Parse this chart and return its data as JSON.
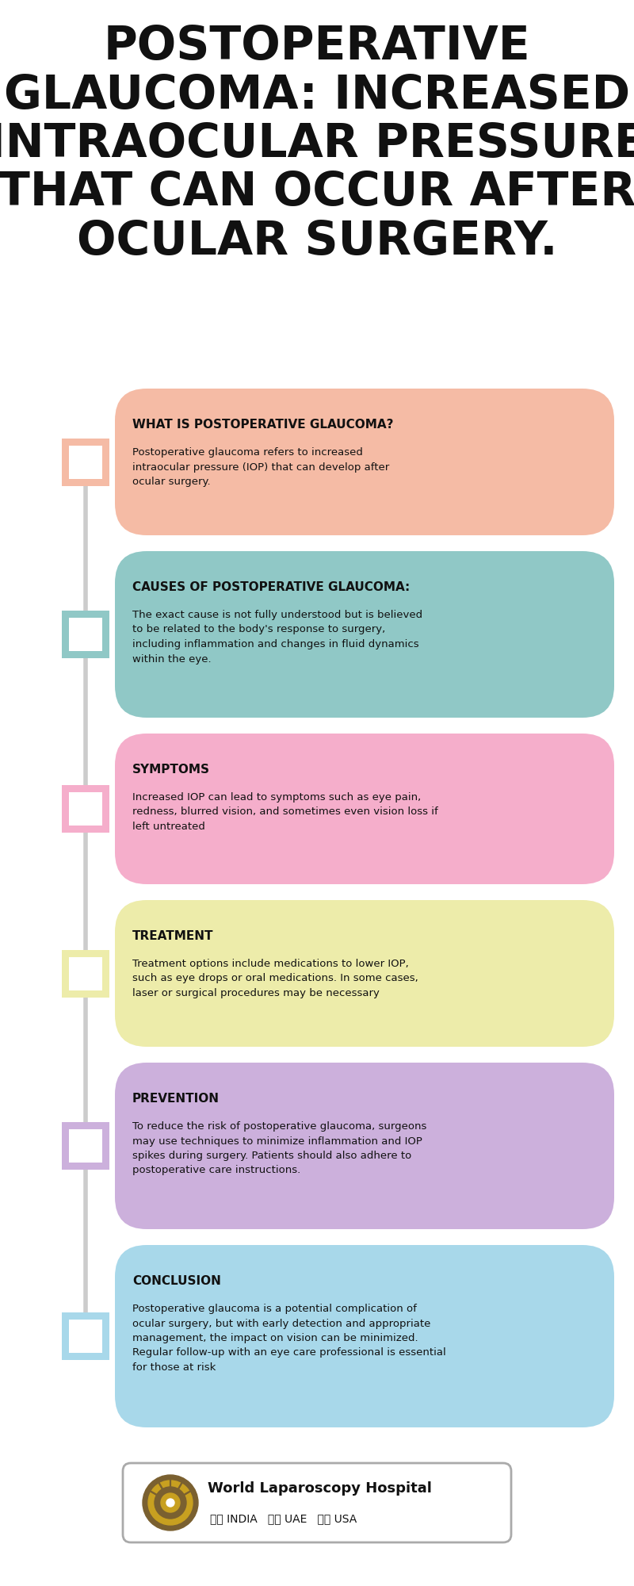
{
  "title": "POSTOPERATIVE\nGLAUCOMA: INCREASED\nINTRAOCULAR PRESSURE\nTHAT CAN OCCUR AFTER\nOCULAR SURGERY.",
  "bg_color": "#ffffff",
  "sections": [
    {
      "heading": "WHAT IS POSTOPERATIVE GLAUCOMA?",
      "body": "Postoperative glaucoma refers to increased\nintraocular pressure (IOP) that can develop after\nocular surgery.",
      "color": "#F5BBA5",
      "border_color": "#F5BBA5"
    },
    {
      "heading": "CAUSES OF POSTOPERATIVE GLAUCOMA:",
      "body": "The exact cause is not fully understood but is believed\nto be related to the body's response to surgery,\nincluding inflammation and changes in fluid dynamics\nwithin the eye.",
      "color": "#90C8C6",
      "border_color": "#90C8C6"
    },
    {
      "heading": "SYMPTOMS",
      "body": "Increased IOP can lead to symptoms such as eye pain,\nredness, blurred vision, and sometimes even vision loss if\nleft untreated",
      "color": "#F5AECB",
      "border_color": "#F5AECB"
    },
    {
      "heading": "TREATMENT",
      "body": "Treatment options include medications to lower IOP,\nsuch as eye drops or oral medications. In some cases,\nlaser or surgical procedures may be necessary",
      "color": "#EDECAA",
      "border_color": "#EDECAA"
    },
    {
      "heading": "PREVENTION",
      "body": "To reduce the risk of postoperative glaucoma, surgeons\nmay use techniques to minimize inflammation and IOP\nspikes during surgery. Patients should also adhere to\npostoperative care instructions.",
      "color": "#CCB0DC",
      "border_color": "#CCB0DC"
    },
    {
      "heading": "CONCLUSION",
      "body": "Postoperative glaucoma is a potential complication of\nocular surgery, but with early detection and appropriate\nmanagement, the impact on vision can be minimized.\nRegular follow-up with an eye care professional is essential\nfor those at risk",
      "color": "#A8D8EA",
      "border_color": "#A8D8EA"
    }
  ],
  "footer_text": "World Laparoscopy Hospital",
  "footer_flags": "  INDIA    🇦🇦 UAE    🇺🇸 USA",
  "line_color": "#cccccc",
  "title_fontsize": 42,
  "heading_fontsize": 11,
  "body_fontsize": 9.5
}
